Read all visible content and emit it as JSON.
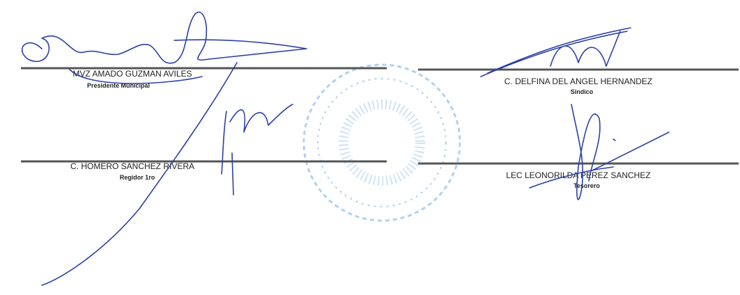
{
  "signatures": [
    {
      "name": "MVZ AMADO GUZMAN AVILES",
      "title": "Presidente Municipal"
    },
    {
      "name": "C. DELFINA DEL ANGEL HERNANDEZ",
      "title": "Sindico"
    },
    {
      "name": "C. HOMERO SANCHEZ RIVERA",
      "title": "Regidor 1ro"
    },
    {
      "name": "LEC LEONORILDA PEREZ SANCHEZ",
      "title": "Tesorero"
    }
  ]
}
